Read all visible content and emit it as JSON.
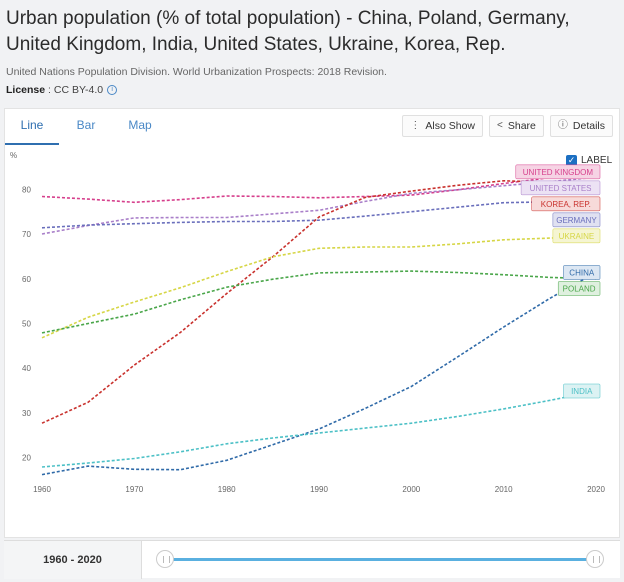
{
  "page": {
    "title": "Urban population (% of total population) - China, Poland, Germany, United Kingdom, India, United States, Ukraine, Korea, Rep.",
    "source": "United Nations Population Division. World Urbanization Prospects: 2018 Revision.",
    "license_label": "License",
    "license_value": "CC BY-4.0",
    "info_icon": "i"
  },
  "tabs": [
    {
      "label": "Line",
      "active": true
    },
    {
      "label": "Bar",
      "active": false
    },
    {
      "label": "Map",
      "active": false
    }
  ],
  "tools": {
    "also_show": {
      "icon": "⋮",
      "label": "Also Show"
    },
    "share": {
      "icon": "<",
      "label": "Share"
    },
    "details": {
      "icon": "ⓘ",
      "label": "Details"
    }
  },
  "label_toggle": {
    "label": "LABEL",
    "checked": true,
    "check_glyph": "✓"
  },
  "range": {
    "label": "1960 - 2020"
  },
  "chart_data": {
    "type": "line",
    "ylabel": "%",
    "xlim": [
      1960,
      2020
    ],
    "ylim": [
      15,
      87
    ],
    "x_ticks": [
      1960,
      1970,
      1980,
      1990,
      2000,
      2010,
      2020
    ],
    "y_ticks": [
      20,
      30,
      40,
      50,
      60,
      70,
      80
    ],
    "series": [
      {
        "name": "UNITED KINGDOM",
        "color": "#d63f8c",
        "label_color": "#f6d3e4",
        "x": [
          1960,
          1965,
          1970,
          1975,
          1980,
          1985,
          1990,
          1995,
          2000,
          2005,
          2010,
          2015,
          2020
        ],
        "y": [
          78.4,
          77.8,
          77.1,
          77.7,
          78.5,
          78.4,
          78.1,
          78.4,
          78.7,
          79.9,
          81.3,
          82.6,
          83.9
        ]
      },
      {
        "name": "UNITED STATES",
        "color": "#a97fc9",
        "label_color": "#ece2f4",
        "x": [
          1960,
          1965,
          1970,
          1975,
          1980,
          1985,
          1990,
          1995,
          2000,
          2005,
          2010,
          2015,
          2020
        ],
        "y": [
          70.0,
          71.9,
          73.6,
          73.7,
          73.7,
          74.5,
          75.3,
          77.3,
          79.1,
          79.9,
          80.8,
          81.7,
          82.7
        ]
      },
      {
        "name": "GERMANY",
        "color": "#6a6fbc",
        "label_color": "#e0e1f1",
        "x": [
          1960,
          1965,
          1970,
          1975,
          1980,
          1985,
          1990,
          1995,
          2000,
          2005,
          2010,
          2015,
          2020
        ],
        "y": [
          71.4,
          72.0,
          72.3,
          72.6,
          72.8,
          72.8,
          73.1,
          74.0,
          75.0,
          76.0,
          77.0,
          77.2,
          77.5
        ]
      },
      {
        "name": "KOREA, REP.",
        "color": "#c9322e",
        "label_color": "#f7dad9",
        "x": [
          1960,
          1965,
          1970,
          1975,
          1980,
          1985,
          1990,
          1995,
          2000,
          2005,
          2010,
          2015,
          2020
        ],
        "y": [
          27.7,
          32.4,
          40.7,
          48.0,
          56.7,
          64.9,
          73.8,
          78.2,
          79.6,
          80.9,
          81.9,
          81.6,
          81.4
        ]
      },
      {
        "name": "UKRAINE",
        "color": "#d6d646",
        "label_color": "#f5f5d2",
        "x": [
          1960,
          1965,
          1970,
          1975,
          1980,
          1985,
          1990,
          1995,
          2000,
          2005,
          2010,
          2015,
          2020
        ],
        "y": [
          46.8,
          51.4,
          54.8,
          58.0,
          61.6,
          64.9,
          66.8,
          67.1,
          67.1,
          67.8,
          68.7,
          69.1,
          69.6
        ]
      },
      {
        "name": "POLAND",
        "color": "#4aa64a",
        "label_color": "#dff0df",
        "x": [
          1960,
          1965,
          1970,
          1975,
          1980,
          1985,
          1990,
          1995,
          2000,
          2005,
          2010,
          2015,
          2020
        ],
        "y": [
          47.9,
          50.0,
          52.1,
          55.3,
          58.1,
          59.9,
          61.3,
          61.5,
          61.7,
          61.4,
          60.9,
          60.3,
          60.0
        ]
      },
      {
        "name": "CHINA",
        "color": "#2f6aa8",
        "label_color": "#dce7f3",
        "x": [
          1960,
          1965,
          1970,
          1975,
          1980,
          1985,
          1990,
          1995,
          2000,
          2005,
          2010,
          2015,
          2020
        ],
        "y": [
          16.2,
          18.1,
          17.4,
          17.3,
          19.4,
          22.9,
          26.4,
          31.0,
          35.9,
          42.5,
          49.2,
          55.6,
          61.4
        ]
      },
      {
        "name": "INDIA",
        "color": "#4cc0c6",
        "label_color": "#dcf2f3",
        "x": [
          1960,
          1965,
          1970,
          1975,
          1980,
          1985,
          1990,
          1995,
          2000,
          2005,
          2010,
          2015,
          2020
        ],
        "y": [
          17.9,
          18.8,
          19.8,
          21.3,
          23.1,
          24.4,
          25.5,
          26.6,
          27.7,
          29.2,
          30.9,
          32.8,
          34.9
        ]
      }
    ]
  }
}
